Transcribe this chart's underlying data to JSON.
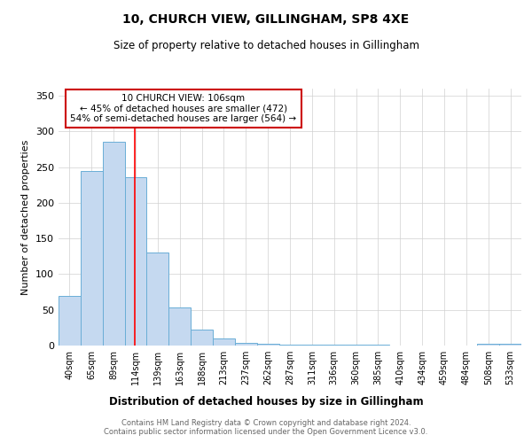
{
  "title": "10, CHURCH VIEW, GILLINGHAM, SP8 4XE",
  "subtitle": "Size of property relative to detached houses in Gillingham",
  "xlabel": "Distribution of detached houses by size in Gillingham",
  "ylabel": "Number of detached properties",
  "footer_line1": "Contains HM Land Registry data © Crown copyright and database right 2024.",
  "footer_line2": "Contains public sector information licensed under the Open Government Licence v3.0.",
  "categories": [
    "40sqm",
    "65sqm",
    "89sqm",
    "114sqm",
    "139sqm",
    "163sqm",
    "188sqm",
    "213sqm",
    "237sqm",
    "262sqm",
    "287sqm",
    "311sqm",
    "336sqm",
    "360sqm",
    "385sqm",
    "410sqm",
    "434sqm",
    "459sqm",
    "484sqm",
    "508sqm",
    "533sqm"
  ],
  "values": [
    70,
    245,
    285,
    236,
    130,
    53,
    22,
    10,
    4,
    2,
    1,
    1,
    1,
    1,
    1,
    0,
    0,
    0,
    0,
    3,
    3
  ],
  "bar_color": "#c5d9f0",
  "bar_edge_color": "#6aaed6",
  "red_line_x": 2.95,
  "annotation_box_text": "10 CHURCH VIEW: 106sqm\n← 45% of detached houses are smaller (472)\n54% of semi-detached houses are larger (564) →",
  "annotation_box_color": "#ffffff",
  "annotation_box_edge_color": "#cc0000",
  "ylim": [
    0,
    360
  ],
  "yticks": [
    0,
    50,
    100,
    150,
    200,
    250,
    300,
    350
  ],
  "background_color": "#ffffff",
  "grid_color": "#d0d0d0"
}
